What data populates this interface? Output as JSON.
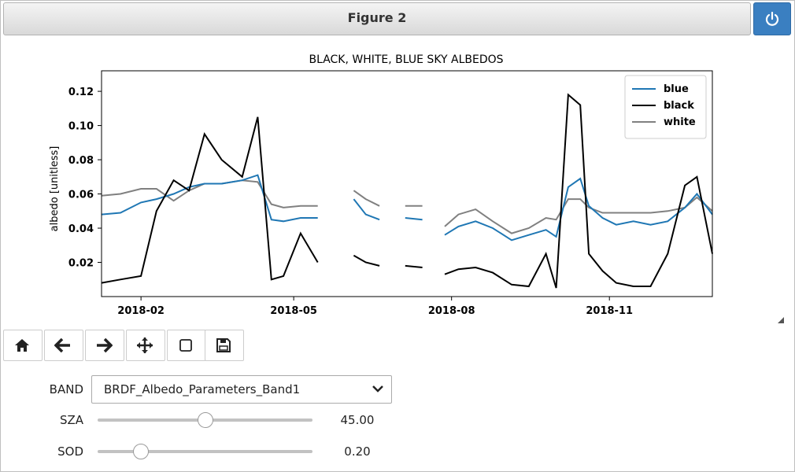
{
  "window": {
    "title": "Figure 2"
  },
  "icons": {
    "power": "power-icon",
    "home": "home-icon",
    "back": "arrow-left-icon",
    "forward": "arrow-right-icon",
    "pan": "move-icon",
    "zoom": "zoom-rect-icon",
    "save": "floppy-disk-icon",
    "chevron": "chevron-down-icon"
  },
  "colors": {
    "power_button": "#3a7fc1",
    "blue": "#1f77b4",
    "black": "#000000",
    "white": "#808080"
  },
  "chart_data": {
    "type": "line",
    "title": "BLACK, WHITE, BLUE SKY ALBEDOS",
    "xlabel": "",
    "ylabel": "albedo [unitless]",
    "x_ticks": [
      "2018-02",
      "2018-05",
      "2018-08",
      "2018-11"
    ],
    "y_ticks": [
      "0.02",
      "0.04",
      "0.06",
      "0.08",
      "0.10",
      "0.12"
    ],
    "xlim": [
      "2018-01-09",
      "2018-12-31"
    ],
    "ylim": [
      0.0,
      0.132
    ],
    "grid": false,
    "legend_position": "top-right",
    "x": [
      "2018-01-09",
      "2018-01-20",
      "2018-02-01",
      "2018-02-10",
      "2018-02-20",
      "2018-03-01",
      "2018-03-10",
      "2018-03-20",
      "2018-04-01",
      "2018-04-10",
      "2018-04-18",
      "2018-04-25",
      "2018-05-05",
      "2018-05-15",
      "2018-05-25",
      "2018-06-05",
      "2018-06-12",
      "2018-06-20",
      "2018-06-28",
      "2018-07-05",
      "2018-07-15",
      "2018-07-20",
      "2018-07-28",
      "2018-08-05",
      "2018-08-15",
      "2018-08-25",
      "2018-09-05",
      "2018-09-15",
      "2018-09-25",
      "2018-10-01",
      "2018-10-08",
      "2018-10-15",
      "2018-10-20",
      "2018-10-28",
      "2018-11-05",
      "2018-11-15",
      "2018-11-25",
      "2018-12-05",
      "2018-12-15",
      "2018-12-22",
      "2018-12-31"
    ],
    "series": [
      {
        "name": "blue",
        "values": [
          0.048,
          0.049,
          0.055,
          0.057,
          0.06,
          0.064,
          0.066,
          0.066,
          0.068,
          0.071,
          0.045,
          0.044,
          0.046,
          0.046,
          null,
          0.057,
          0.048,
          0.045,
          null,
          0.046,
          0.045,
          null,
          0.036,
          0.041,
          0.044,
          0.04,
          0.033,
          0.036,
          0.039,
          0.035,
          0.064,
          0.069,
          0.053,
          0.046,
          0.042,
          0.044,
          0.042,
          0.044,
          0.052,
          0.06,
          0.048
        ]
      },
      {
        "name": "black",
        "values": [
          0.008,
          0.01,
          0.012,
          0.05,
          0.068,
          0.062,
          0.095,
          0.08,
          0.07,
          0.105,
          0.01,
          0.012,
          0.037,
          0.02,
          null,
          0.024,
          0.02,
          0.018,
          null,
          0.018,
          0.017,
          null,
          0.013,
          0.016,
          0.017,
          0.014,
          0.007,
          0.006,
          0.025,
          0.005,
          0.118,
          0.112,
          0.025,
          0.015,
          0.008,
          0.006,
          0.006,
          0.025,
          0.065,
          0.07,
          0.025
        ]
      },
      {
        "name": "white",
        "values": [
          0.059,
          0.06,
          0.063,
          0.063,
          0.056,
          0.062,
          0.066,
          0.066,
          0.068,
          0.067,
          0.054,
          0.052,
          0.053,
          0.053,
          null,
          0.062,
          0.057,
          0.053,
          null,
          0.053,
          0.053,
          null,
          0.041,
          0.048,
          0.051,
          0.044,
          0.037,
          0.04,
          0.046,
          0.045,
          0.057,
          0.057,
          0.052,
          0.049,
          0.049,
          0.049,
          0.049,
          0.05,
          0.052,
          0.058,
          0.05
        ]
      }
    ]
  },
  "toolbar": {
    "buttons": [
      "home",
      "back",
      "forward",
      "pan",
      "zoom",
      "save"
    ]
  },
  "controls": {
    "band": {
      "label": "BAND",
      "value": "BRDF_Albedo_Parameters_Band1"
    },
    "sza": {
      "label": "SZA",
      "value": "45.00",
      "fraction": 0.5
    },
    "sod": {
      "label": "SOD",
      "value": "0.20",
      "fraction": 0.2
    }
  }
}
